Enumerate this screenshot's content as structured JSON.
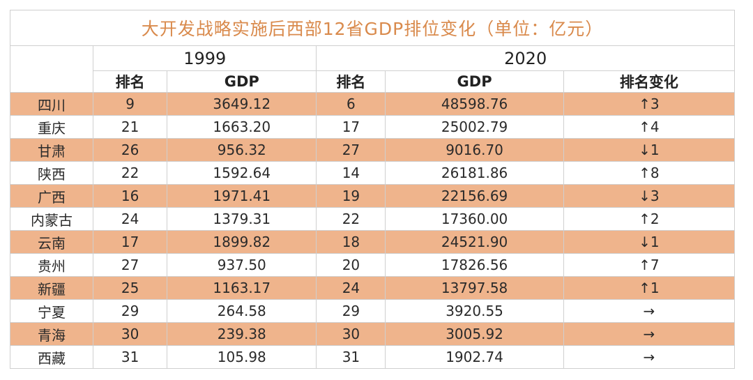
{
  "title": "大开发战略实施后西部12省GDP排位变化（单位：亿元）",
  "years": {
    "y1999": "1999",
    "y2020": "2020"
  },
  "columns": {
    "rank1999": "排名",
    "gdp1999": "GDP",
    "rank2020": "排名",
    "gdp2020": "GDP",
    "change": "排名变化"
  },
  "rows": [
    {
      "province": "四川",
      "rank1999": "9",
      "gdp1999": "3649.12",
      "rank2020": "6",
      "gdp2020": "48598.76",
      "change": "↑3"
    },
    {
      "province": "重庆",
      "rank1999": "21",
      "gdp1999": "1663.20",
      "rank2020": "17",
      "gdp2020": "25002.79",
      "change": "↑4"
    },
    {
      "province": "甘肃",
      "rank1999": "26",
      "gdp1999": "956.32",
      "rank2020": "27",
      "gdp2020": "9016.70",
      "change": "↓1"
    },
    {
      "province": "陕西",
      "rank1999": "22",
      "gdp1999": "1592.64",
      "rank2020": "14",
      "gdp2020": "26181.86",
      "change": "↑8"
    },
    {
      "province": "广西",
      "rank1999": "16",
      "gdp1999": "1971.41",
      "rank2020": "19",
      "gdp2020": "22156.69",
      "change": "↓3"
    },
    {
      "province": "内蒙古",
      "rank1999": "24",
      "gdp1999": "1379.31",
      "rank2020": "22",
      "gdp2020": "17360.00",
      "change": "↑2"
    },
    {
      "province": "云南",
      "rank1999": "17",
      "gdp1999": "1899.82",
      "rank2020": "18",
      "gdp2020": "24521.90",
      "change": "↓1"
    },
    {
      "province": "贵州",
      "rank1999": "27",
      "gdp1999": "937.50",
      "rank2020": "20",
      "gdp2020": "17826.56",
      "change": "↑7"
    },
    {
      "province": "新疆",
      "rank1999": "25",
      "gdp1999": "1163.17",
      "rank2020": "24",
      "gdp2020": "13797.58",
      "change": "↑1"
    },
    {
      "province": "宁夏",
      "rank1999": "29",
      "gdp1999": "264.58",
      "rank2020": "29",
      "gdp2020": "3920.55",
      "change": "→"
    },
    {
      "province": "青海",
      "rank1999": "30",
      "gdp1999": "239.38",
      "rank2020": "30",
      "gdp2020": "3005.92",
      "change": "→"
    },
    {
      "province": "西藏",
      "rank1999": "31",
      "gdp1999": "105.98",
      "rank2020": "31",
      "gdp2020": "1902.74",
      "change": "→"
    }
  ],
  "colors": {
    "title": "#d98a4c",
    "shaded_row": "#efb48c",
    "border": "#cfcfcf"
  }
}
